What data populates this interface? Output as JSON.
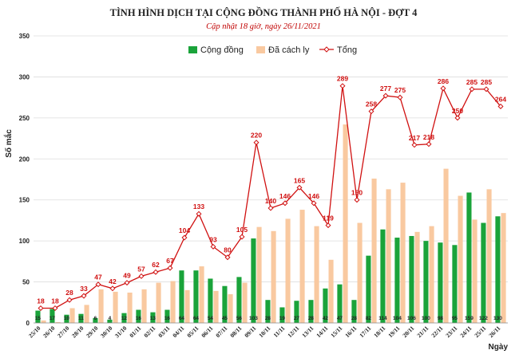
{
  "chart_data": {
    "type": "bar",
    "title": "TÌNH HÌNH DỊCH TẠI CỘNG ĐỒNG THÀNH PHỐ HÀ NỘI - ĐỢT 4",
    "subtitle": "Cập nhật 18 giờ, ngày 26/11/2021",
    "ylabel": "Số mắc",
    "xlabel": "Ngày",
    "ylim": [
      0,
      350
    ],
    "yticks": [
      0,
      50,
      100,
      150,
      200,
      250,
      300,
      350
    ],
    "grid": true,
    "legend_position": "top",
    "categories": [
      "25/10",
      "26/10",
      "27/10",
      "28/10",
      "29/10",
      "30/10",
      "31/10",
      "01/11",
      "02/11",
      "03/11",
      "04/11",
      "05/11",
      "06/11",
      "07/11",
      "08/11",
      "09/11",
      "10/11",
      "11/11",
      "12/11",
      "13/11",
      "14/11",
      "15/11",
      "16/11",
      "17/11",
      "18/11",
      "19/11",
      "20/11",
      "21/11",
      "22/11",
      "23/11",
      "24/11",
      "25/11",
      "26/11"
    ],
    "series": [
      {
        "name": "Cộng đồng",
        "kind": "bar",
        "color": "#1aa33a",
        "values": [
          15,
          17,
          10,
          11,
          6,
          4,
          12,
          16,
          13,
          16,
          64,
          64,
          54,
          45,
          56,
          103,
          28,
          19,
          27,
          28,
          42,
          47,
          28,
          82,
          114,
          104,
          106,
          100,
          98,
          95,
          159,
          122,
          130
        ]
      },
      {
        "name": "Đã cách ly",
        "kind": "bar",
        "color": "#f9c9a0",
        "values": [
          3,
          1,
          18,
          22,
          41,
          38,
          37,
          41,
          49,
          51,
          40,
          69,
          39,
          35,
          49,
          117,
          112,
          127,
          138,
          118,
          77,
          242,
          122,
          176,
          163,
          171,
          111,
          118,
          188,
          155,
          126,
          163,
          134
        ]
      },
      {
        "name": "Tổng",
        "kind": "line",
        "color": "#d01010",
        "values": [
          18,
          18,
          28,
          33,
          47,
          42,
          49,
          57,
          62,
          67,
          104,
          133,
          93,
          80,
          105,
          220,
          140,
          146,
          165,
          146,
          119,
          289,
          150,
          258,
          277,
          275,
          217,
          218,
          286,
          250,
          285,
          285,
          264
        ]
      }
    ]
  }
}
